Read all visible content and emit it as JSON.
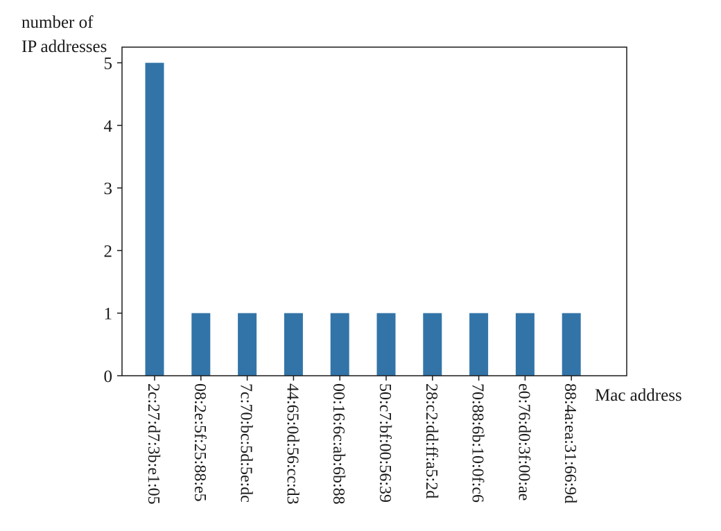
{
  "chart_data": {
    "type": "bar",
    "title": "",
    "ylabel_lines": [
      "number of",
      "IP addresses"
    ],
    "xlabel": "Mac address",
    "categories": [
      "2c:27:d7:3b:e1:05",
      "08:2e:5f:25:88:e5",
      "7c:70:bc:5d:5e:dc",
      "44:65:0d:56:cc:d3",
      "00:16:6c:ab:6b:88",
      "50:c7:bf:00:56:39",
      "28:c2:dd:ff:a5:2d",
      "70:88:6b:10:0f:c6",
      "e0:76:d0:3f:00:ae",
      "88:4a:ea:31:66:9d"
    ],
    "values": [
      5,
      1,
      1,
      1,
      1,
      1,
      1,
      1,
      1,
      1
    ],
    "yticks": [
      0,
      1,
      2,
      3,
      4,
      5
    ],
    "ylim": [
      0,
      5.25
    ],
    "bar_color": "#3274a8",
    "grid": false,
    "legend": "none"
  }
}
